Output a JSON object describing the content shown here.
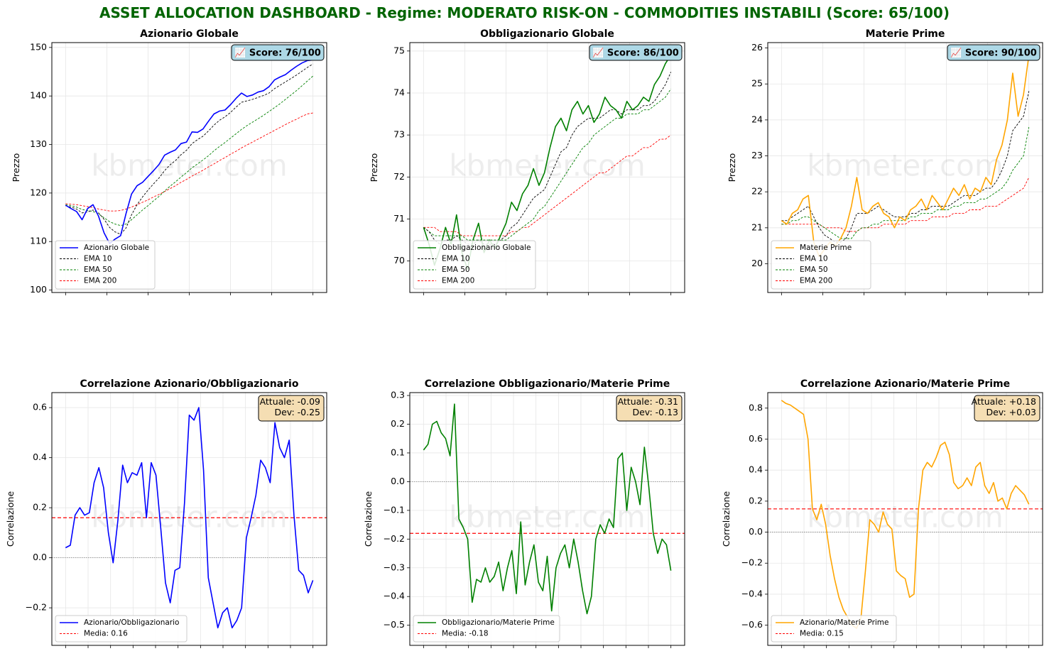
{
  "title": "ASSET ALLOCATION DASHBOARD - Regime: MODERATO RISK-ON  - COMMODITIES INSTABILI (Score: 65/100)",
  "watermark": "kbmeter.com",
  "colors": {
    "title": "#006400",
    "equity": "#0000ff",
    "bond": "#008000",
    "commodity": "#ffa500",
    "ema10": "#000000",
    "ema50": "#008000",
    "ema200": "#ff0000",
    "mean_line": "#ff0000",
    "zero_line": "#808080",
    "score_box": "#add8e6",
    "stats_box": "#f5deb3"
  },
  "chart_data": [
    {
      "type": "line",
      "title": "Azionario Globale",
      "ylabel": "Prezzo",
      "xlabel": "",
      "ylim": [
        99.5,
        151
      ],
      "yticks": [
        100,
        110,
        120,
        130,
        140,
        150
      ],
      "grid": true,
      "legend_position": "lower-left",
      "score_label": "📈 Score: 76/100",
      "series": [
        {
          "name": "Azionario Globale",
          "style": "solid",
          "color": "#0000ff",
          "values": [
            117.5,
            116.8,
            116.2,
            114.5,
            116.8,
            117.6,
            115.2,
            111.8,
            109.6,
            110.5,
            111.2,
            115.8,
            119.8,
            121.5,
            122.2,
            123.4,
            124.6,
            125.9,
            127.8,
            128.4,
            128.9,
            130.2,
            130.5,
            132.6,
            132.5,
            133.2,
            134.8,
            136.3,
            136.9,
            137.1,
            138.2,
            139.5,
            140.6,
            139.9,
            140.2,
            140.8,
            141.1,
            141.9,
            143.3,
            143.9,
            144.4,
            145.3,
            146.1,
            146.8,
            147.3,
            147.4
          ]
        },
        {
          "name": "EMA 10",
          "style": "dashed",
          "color": "#000000",
          "values": [
            117.4,
            117.1,
            116.7,
            115.9,
            116.1,
            116.5,
            115.9,
            114.6,
            112.9,
            112.0,
            111.5,
            112.8,
            115.5,
            117.6,
            119.2,
            120.6,
            121.9,
            123.1,
            124.6,
            125.8,
            126.7,
            127.9,
            128.8,
            130.2,
            131.0,
            131.7,
            132.8,
            134.0,
            135.0,
            135.7,
            136.6,
            137.7,
            138.7,
            139.0,
            139.3,
            139.7,
            140.1,
            140.6,
            141.5,
            142.2,
            142.9,
            143.6,
            144.3,
            145.1,
            145.9,
            146.6
          ]
        },
        {
          "name": "EMA 50",
          "style": "dashed",
          "color": "#008000",
          "values": [
            117.6,
            117.4,
            117.1,
            116.6,
            116.4,
            116.2,
            115.7,
            114.9,
            114.1,
            113.6,
            113.3,
            113.6,
            114.5,
            115.5,
            116.5,
            117.4,
            118.4,
            119.3,
            120.4,
            121.4,
            122.3,
            123.3,
            124.2,
            125.2,
            126.0,
            126.8,
            127.7,
            128.7,
            129.6,
            130.4,
            131.3,
            132.2,
            133.1,
            133.9,
            134.6,
            135.3,
            136.0,
            136.8,
            137.6,
            138.4,
            139.3,
            140.2,
            141.1,
            142.1,
            143.1,
            144.1
          ]
        },
        {
          "name": "EMA 200",
          "style": "dashed",
          "color": "#ff0000",
          "values": [
            117.8,
            117.7,
            117.6,
            117.4,
            117.2,
            117.0,
            116.7,
            116.5,
            116.3,
            116.3,
            116.4,
            116.7,
            117.1,
            117.6,
            118.1,
            118.6,
            119.2,
            119.7,
            120.3,
            120.9,
            121.5,
            122.2,
            122.8,
            123.5,
            124.1,
            124.7,
            125.4,
            126.0,
            126.7,
            127.3,
            128.0,
            128.6,
            129.3,
            129.9,
            130.5,
            131.1,
            131.7,
            132.3,
            132.9,
            133.5,
            134.1,
            134.7,
            135.2,
            135.8,
            136.3,
            136.5
          ]
        }
      ]
    },
    {
      "type": "line",
      "title": "Obbligazionario Globale",
      "ylabel": "Prezzo",
      "xlabel": "",
      "ylim": [
        69.25,
        75.2
      ],
      "yticks": [
        70,
        71,
        72,
        73,
        74,
        75
      ],
      "grid": true,
      "legend_position": "lower-left",
      "score_label": "📈 Score: 86/100",
      "series": [
        {
          "name": "Obbligazionario Globale",
          "style": "solid",
          "color": "#008000",
          "values": [
            70.8,
            70.4,
            69.9,
            70.3,
            70.8,
            70.4,
            71.1,
            70.2,
            69.8,
            70.5,
            70.9,
            70.2,
            70.5,
            70.3,
            70.6,
            70.9,
            71.4,
            71.2,
            71.6,
            71.8,
            72.2,
            71.8,
            72.1,
            72.7,
            73.2,
            73.4,
            73.1,
            73.6,
            73.8,
            73.5,
            73.7,
            73.3,
            73.5,
            73.9,
            73.7,
            73.6,
            73.4,
            73.8,
            73.6,
            73.7,
            73.9,
            73.8,
            74.2,
            74.4,
            74.7,
            74.9
          ]
        },
        {
          "name": "EMA 10",
          "style": "dashed",
          "color": "#000000",
          "values": [
            70.8,
            70.7,
            70.5,
            70.4,
            70.5,
            70.5,
            70.6,
            70.5,
            70.4,
            70.4,
            70.5,
            70.4,
            70.4,
            70.4,
            70.5,
            70.6,
            70.8,
            70.9,
            71.1,
            71.3,
            71.5,
            71.6,
            71.7,
            72.0,
            72.3,
            72.6,
            72.7,
            73.0,
            73.2,
            73.3,
            73.4,
            73.4,
            73.4,
            73.5,
            73.6,
            73.6,
            73.5,
            73.6,
            73.6,
            73.6,
            73.7,
            73.7,
            73.8,
            74.0,
            74.2,
            74.5
          ]
        },
        {
          "name": "EMA 50",
          "style": "dashed",
          "color": "#008000",
          "values": [
            70.8,
            70.7,
            70.6,
            70.6,
            70.6,
            70.6,
            70.6,
            70.6,
            70.5,
            70.5,
            70.5,
            70.5,
            70.5,
            70.5,
            70.5,
            70.5,
            70.6,
            70.7,
            70.8,
            70.9,
            71.0,
            71.2,
            71.3,
            71.5,
            71.7,
            71.9,
            72.1,
            72.3,
            72.5,
            72.7,
            72.8,
            73.0,
            73.1,
            73.2,
            73.3,
            73.4,
            73.4,
            73.5,
            73.5,
            73.5,
            73.6,
            73.6,
            73.7,
            73.8,
            73.9,
            74.1
          ]
        },
        {
          "name": "EMA 200",
          "style": "dashed",
          "color": "#ff0000",
          "values": [
            70.8,
            70.8,
            70.8,
            70.7,
            70.7,
            70.7,
            70.7,
            70.6,
            70.6,
            70.6,
            70.6,
            70.6,
            70.6,
            70.6,
            70.6,
            70.6,
            70.7,
            70.7,
            70.8,
            70.8,
            70.9,
            71.0,
            71.1,
            71.2,
            71.3,
            71.4,
            71.5,
            71.6,
            71.7,
            71.8,
            71.9,
            72.0,
            72.1,
            72.1,
            72.2,
            72.3,
            72.4,
            72.5,
            72.5,
            72.6,
            72.7,
            72.7,
            72.8,
            72.9,
            72.9,
            73.0
          ]
        }
      ]
    },
    {
      "type": "line",
      "title": "Materie Prime",
      "ylabel": "Prezzo",
      "xlabel": "",
      "ylim": [
        19.2,
        26.15
      ],
      "yticks": [
        20,
        21,
        22,
        23,
        24,
        25,
        26
      ],
      "grid": true,
      "legend_position": "lower-left",
      "score_label": "📈 Score: 90/100",
      "series": [
        {
          "name": "Materie Prime",
          "style": "solid",
          "color": "#ffa500",
          "values": [
            21.2,
            21.1,
            21.4,
            21.5,
            21.8,
            21.9,
            20.6,
            20.2,
            20.4,
            20.6,
            20.5,
            20.7,
            21.0,
            21.6,
            22.4,
            21.5,
            21.4,
            21.6,
            21.7,
            21.4,
            21.3,
            21.0,
            21.3,
            21.2,
            21.5,
            21.6,
            21.8,
            21.5,
            21.9,
            21.7,
            21.5,
            21.8,
            22.1,
            21.9,
            22.2,
            21.8,
            22.1,
            22.0,
            22.4,
            22.2,
            22.9,
            23.3,
            24.0,
            25.3,
            24.1,
            24.7,
            25.8
          ]
        },
        {
          "name": "EMA 10",
          "style": "dashed",
          "color": "#000000",
          "values": [
            21.2,
            21.2,
            21.3,
            21.4,
            21.5,
            21.6,
            21.3,
            21.0,
            20.8,
            20.7,
            20.6,
            20.6,
            20.7,
            21.0,
            21.4,
            21.4,
            21.4,
            21.5,
            21.6,
            21.5,
            21.4,
            21.3,
            21.3,
            21.3,
            21.4,
            21.4,
            21.5,
            21.5,
            21.6,
            21.6,
            21.6,
            21.6,
            21.7,
            21.8,
            21.9,
            21.9,
            21.9,
            22.0,
            22.1,
            22.1,
            22.3,
            22.6,
            23.0,
            23.7,
            23.9,
            24.1,
            24.8
          ]
        },
        {
          "name": "EMA 50",
          "style": "dashed",
          "color": "#008000",
          "values": [
            21.1,
            21.1,
            21.2,
            21.2,
            21.3,
            21.3,
            21.2,
            21.1,
            21.0,
            20.9,
            20.8,
            20.7,
            20.7,
            20.7,
            20.9,
            21.0,
            21.0,
            21.1,
            21.1,
            21.2,
            21.2,
            21.2,
            21.2,
            21.2,
            21.3,
            21.3,
            21.4,
            21.4,
            21.4,
            21.5,
            21.5,
            21.5,
            21.6,
            21.6,
            21.7,
            21.7,
            21.7,
            21.8,
            21.8,
            21.9,
            22.0,
            22.1,
            22.3,
            22.6,
            22.8,
            23.0,
            23.8
          ]
        },
        {
          "name": "EMA 200",
          "style": "dashed",
          "color": "#ff0000",
          "values": [
            21.1,
            21.1,
            21.1,
            21.1,
            21.1,
            21.1,
            21.1,
            21.1,
            21.0,
            21.0,
            21.0,
            21.0,
            20.9,
            20.9,
            20.9,
            21.0,
            21.0,
            21.0,
            21.0,
            21.1,
            21.1,
            21.1,
            21.1,
            21.1,
            21.2,
            21.2,
            21.2,
            21.2,
            21.3,
            21.3,
            21.3,
            21.3,
            21.4,
            21.4,
            21.4,
            21.5,
            21.5,
            21.5,
            21.6,
            21.6,
            21.6,
            21.7,
            21.8,
            21.9,
            22.0,
            22.1,
            22.4
          ]
        }
      ]
    },
    {
      "type": "line",
      "title": "Correlazione Azionario/Obbligazionario",
      "ylabel": "Correlazione",
      "xlabel": "",
      "ylim": [
        -0.35,
        0.66
      ],
      "yticks": [
        -0.2,
        0.0,
        0.2,
        0.4,
        0.6
      ],
      "grid": true,
      "legend_position": "lower-left",
      "stats_label": [
        "Attuale: -0.09",
        "Dev: -0.25"
      ],
      "mean": 0.16,
      "series": [
        {
          "name": "Azionario/Obbligazionario",
          "style": "solid",
          "color": "#0000ff",
          "values": [
            0.04,
            0.05,
            0.17,
            0.2,
            0.17,
            0.18,
            0.3,
            0.36,
            0.28,
            0.1,
            -0.02,
            0.15,
            0.37,
            0.3,
            0.34,
            0.33,
            0.38,
            0.16,
            0.38,
            0.33,
            0.12,
            -0.1,
            -0.18,
            -0.05,
            -0.04,
            0.22,
            0.57,
            0.55,
            0.6,
            0.35,
            -0.08,
            -0.18,
            -0.28,
            -0.22,
            -0.2,
            -0.28,
            -0.25,
            -0.2,
            0.08,
            0.16,
            0.25,
            0.39,
            0.36,
            0.3,
            0.54,
            0.44,
            0.4,
            0.47,
            0.17,
            -0.05,
            -0.07,
            -0.14,
            -0.09
          ]
        },
        {
          "name": "Media: 0.16",
          "style": "dashed",
          "color": "#ff0000",
          "constant": 0.16
        }
      ]
    },
    {
      "type": "line",
      "title": "Correlazione Obbligazionario/Materie Prime",
      "ylabel": "Correlazione",
      "xlabel": "",
      "ylim": [
        -0.57,
        0.31
      ],
      "yticks": [
        -0.5,
        -0.4,
        -0.3,
        -0.2,
        -0.1,
        0.0,
        0.1,
        0.2,
        0.3
      ],
      "grid": true,
      "legend_position": "lower-left",
      "stats_label": [
        "Attuale: -0.31",
        "Dev: -0.13"
      ],
      "mean": -0.18,
      "series": [
        {
          "name": "Obbligazionario/Materie Prime",
          "style": "solid",
          "color": "#008000",
          "values": [
            0.11,
            0.13,
            0.2,
            0.21,
            0.17,
            0.15,
            0.09,
            0.27,
            -0.13,
            -0.16,
            -0.2,
            -0.42,
            -0.34,
            -0.35,
            -0.3,
            -0.35,
            -0.33,
            -0.28,
            -0.38,
            -0.3,
            -0.24,
            -0.39,
            -0.14,
            -0.36,
            -0.28,
            -0.22,
            -0.35,
            -0.38,
            -0.26,
            -0.45,
            -0.3,
            -0.25,
            -0.22,
            -0.3,
            -0.2,
            -0.28,
            -0.38,
            -0.46,
            -0.4,
            -0.2,
            -0.15,
            -0.18,
            -0.13,
            -0.16,
            0.08,
            0.1,
            -0.1,
            0.05,
            0.0,
            -0.08,
            0.12,
            -0.02,
            -0.18,
            -0.25,
            -0.2,
            -0.22,
            -0.31
          ]
        },
        {
          "name": "Media: -0.18",
          "style": "dashed",
          "color": "#ff0000",
          "constant": -0.18
        }
      ]
    },
    {
      "type": "line",
      "title": "Correlazione Azionario/Materie Prime",
      "ylabel": "Correlazione",
      "xlabel": "",
      "ylim": [
        -0.73,
        0.9
      ],
      "yticks": [
        -0.6,
        -0.4,
        -0.2,
        0.0,
        0.2,
        0.4,
        0.6,
        0.8
      ],
      "grid": true,
      "legend_position": "lower-left",
      "stats_label": [
        "Attuale: +0.18",
        "Dev: +0.03"
      ],
      "mean": 0.15,
      "series": [
        {
          "name": "Azionario/Materie Prime",
          "style": "solid",
          "color": "#ffa500",
          "values": [
            0.85,
            0.83,
            0.82,
            0.8,
            0.78,
            0.76,
            0.6,
            0.15,
            0.08,
            0.18,
            0.05,
            -0.15,
            -0.3,
            -0.42,
            -0.5,
            -0.55,
            -0.6,
            -0.62,
            -0.55,
            -0.25,
            0.08,
            0.05,
            0.0,
            0.13,
            0.05,
            0.02,
            -0.25,
            -0.28,
            -0.3,
            -0.42,
            -0.4,
            0.15,
            0.4,
            0.45,
            0.42,
            0.48,
            0.56,
            0.58,
            0.5,
            0.32,
            0.28,
            0.3,
            0.35,
            0.3,
            0.42,
            0.45,
            0.3,
            0.25,
            0.32,
            0.2,
            0.22,
            0.15,
            0.25,
            0.3,
            0.27,
            0.24,
            0.18
          ]
        },
        {
          "name": "Media: 0.15",
          "style": "dashed",
          "color": "#ff0000",
          "constant": 0.15
        }
      ]
    }
  ]
}
